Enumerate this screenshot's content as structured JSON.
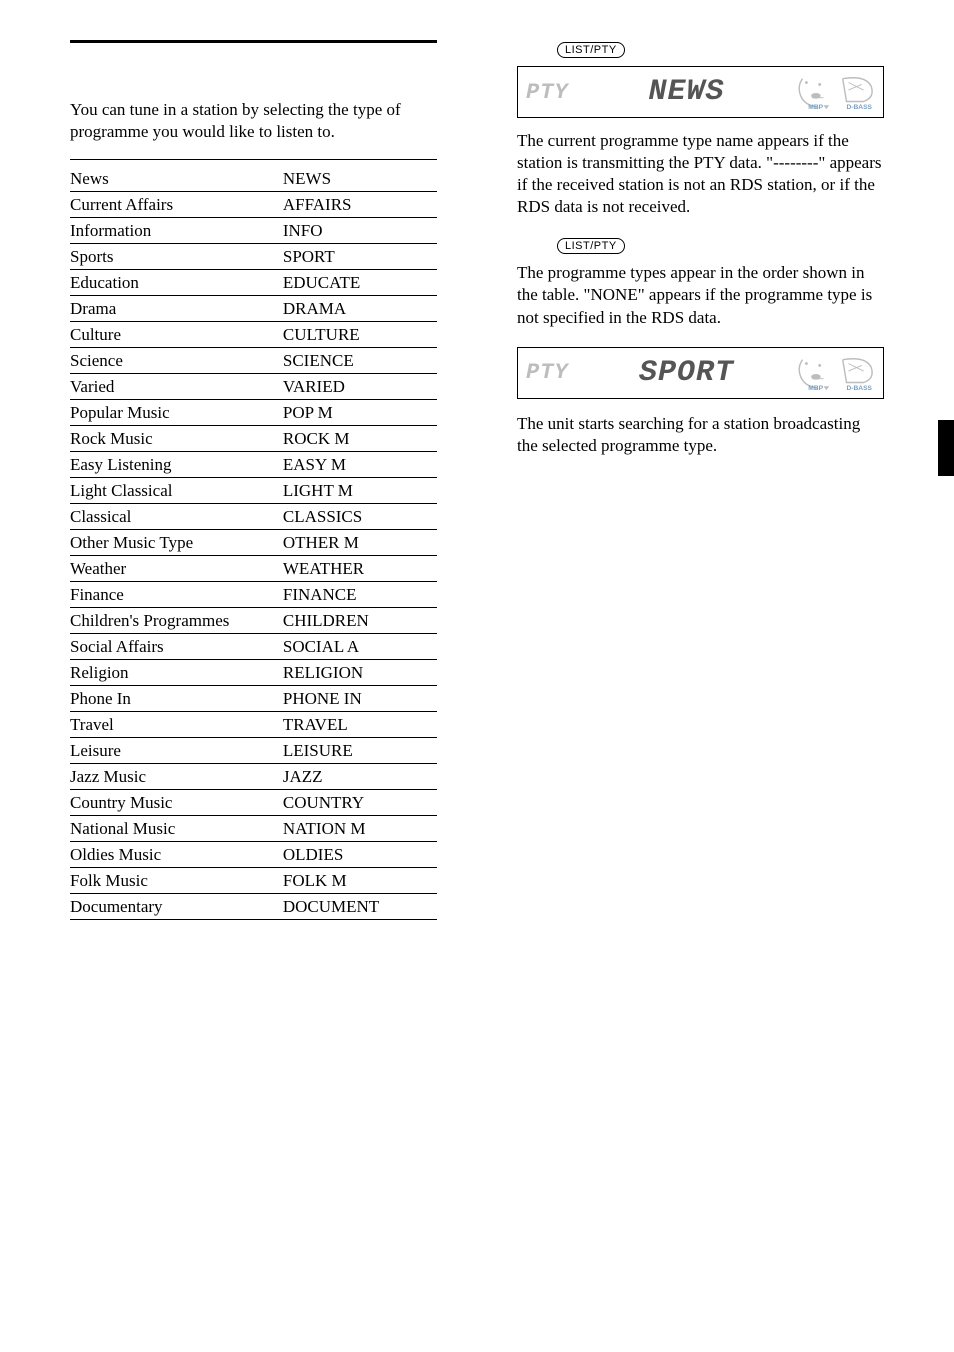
{
  "intro_text": "You can tune in a station by selecting the type of programme you would like to listen to.",
  "pty_table": {
    "rows": [
      [
        "News",
        "NEWS"
      ],
      [
        "Current Affairs",
        "AFFAIRS"
      ],
      [
        "Information",
        "INFO"
      ],
      [
        "Sports",
        "SPORT"
      ],
      [
        "Education",
        "EDUCATE"
      ],
      [
        "Drama",
        "DRAMA"
      ],
      [
        "Culture",
        "CULTURE"
      ],
      [
        "Science",
        "SCIENCE"
      ],
      [
        "Varied",
        "VARIED"
      ],
      [
        "Popular Music",
        "POP M"
      ],
      [
        "Rock Music",
        "ROCK M"
      ],
      [
        "Easy Listening",
        "EASY M"
      ],
      [
        "Light Classical",
        "LIGHT M"
      ],
      [
        "Classical",
        "CLASSICS"
      ],
      [
        "Other Music Type",
        "OTHER M"
      ],
      [
        "Weather",
        "WEATHER"
      ],
      [
        "Finance",
        "FINANCE"
      ],
      [
        "Children's Programmes",
        "CHILDREN"
      ],
      [
        "Social Affairs",
        "SOCIAL A"
      ],
      [
        "Religion",
        "RELIGION"
      ],
      [
        "Phone In",
        "PHONE IN"
      ],
      [
        "Travel",
        "TRAVEL"
      ],
      [
        "Leisure",
        "LEISURE"
      ],
      [
        "Jazz Music",
        "JAZZ"
      ],
      [
        "Country Music",
        "COUNTRY"
      ],
      [
        "National Music",
        "NATION M"
      ],
      [
        "Oldies Music",
        "OLDIES"
      ],
      [
        "Folk Music",
        "FOLK M"
      ],
      [
        "Documentary",
        "DOCUMENT"
      ]
    ]
  },
  "button_label": "LIST/PTY",
  "lcd1": {
    "pty_label": "PTY",
    "main_text": "NEWS",
    "icon1_sub": "MBP",
    "icon2_sub": "D-BASS"
  },
  "para1": "The current programme type name appears if the station is transmitting the PTY data. \"--------\" appears if the received station is not an RDS station, or if the RDS data is not received.",
  "para2": "The programme types appear in the order shown in the table. \"NONE\" appears if the programme type is not specified in the RDS data.",
  "lcd2": {
    "pty_label": "PTY",
    "main_text": "SPORT",
    "icon1_sub": "MBP",
    "icon2_sub": "D-BASS"
  },
  "para3": "The unit starts searching for a station broadcasting the selected programme type.",
  "colors": {
    "text": "#000000",
    "background": "#ffffff",
    "lcd_dim": "#bdbdbd",
    "lcd_main": "#555555",
    "icon_stroke": "#9a9a9a",
    "icon_label": "#7aa0c4"
  }
}
